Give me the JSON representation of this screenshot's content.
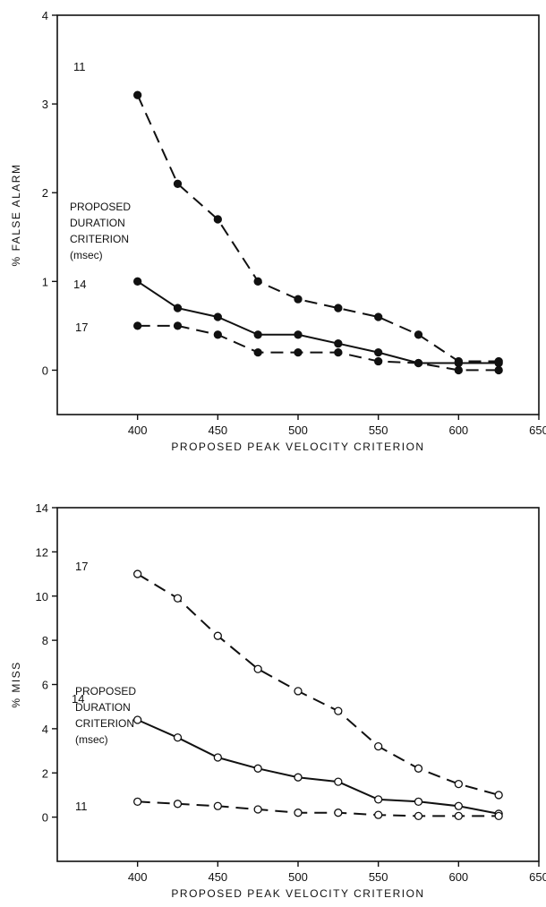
{
  "chart_data": [
    {
      "type": "line",
      "xlabel": "PROPOSED PEAK VELOCITY CRITERION",
      "ylabel": "% FALSE ALARM",
      "xlim": [
        350,
        650
      ],
      "ylim": [
        -0.5,
        4
      ],
      "xticks": [
        400,
        450,
        500,
        550,
        600,
        650
      ],
      "yticks": [
        0,
        1,
        2,
        3,
        4
      ],
      "annotation": [
        "PROPOSED",
        "DURATION",
        "CRITERION",
        "(msec)"
      ],
      "marker": "filled",
      "x": [
        400,
        425,
        450,
        475,
        500,
        525,
        550,
        575,
        600,
        625
      ],
      "series": [
        {
          "name": "11",
          "style": "dashed",
          "values": [
            3.1,
            2.1,
            1.7,
            1.0,
            0.8,
            0.7,
            0.6,
            0.4,
            0.1,
            0.1
          ]
        },
        {
          "name": "14",
          "style": "solid",
          "values": [
            1.0,
            0.7,
            0.6,
            0.4,
            0.4,
            0.3,
            0.2,
            0.08,
            0.08,
            0.08
          ]
        },
        {
          "name": "17",
          "style": "dashed",
          "values": [
            0.5,
            0.5,
            0.4,
            0.2,
            0.2,
            0.2,
            0.1,
            0.08,
            0.0,
            0.0
          ]
        }
      ]
    },
    {
      "type": "line",
      "xlabel": "PROPOSED PEAK VELOCITY CRITERION",
      "ylabel": "% MISS",
      "xlim": [
        350,
        650
      ],
      "ylim": [
        -2,
        14
      ],
      "xticks": [
        400,
        450,
        500,
        550,
        600,
        650
      ],
      "yticks": [
        0,
        2,
        4,
        6,
        8,
        10,
        12,
        14
      ],
      "annotation": [
        "PROPOSED",
        "DURATION",
        "CRITERION",
        "(msec)"
      ],
      "marker": "open",
      "x": [
        400,
        425,
        450,
        475,
        500,
        525,
        550,
        575,
        600,
        625
      ],
      "series": [
        {
          "name": "17",
          "style": "dashed",
          "values": [
            11.0,
            9.9,
            8.2,
            6.7,
            5.7,
            4.8,
            3.2,
            2.2,
            1.5,
            1.0
          ]
        },
        {
          "name": "14",
          "style": "solid",
          "values": [
            4.4,
            3.6,
            2.7,
            2.2,
            1.8,
            1.6,
            0.8,
            0.7,
            0.5,
            0.15
          ]
        },
        {
          "name": "11",
          "style": "dashed",
          "values": [
            0.7,
            0.6,
            0.5,
            0.35,
            0.2,
            0.2,
            0.1,
            0.05,
            0.05,
            0.05
          ]
        }
      ]
    }
  ]
}
